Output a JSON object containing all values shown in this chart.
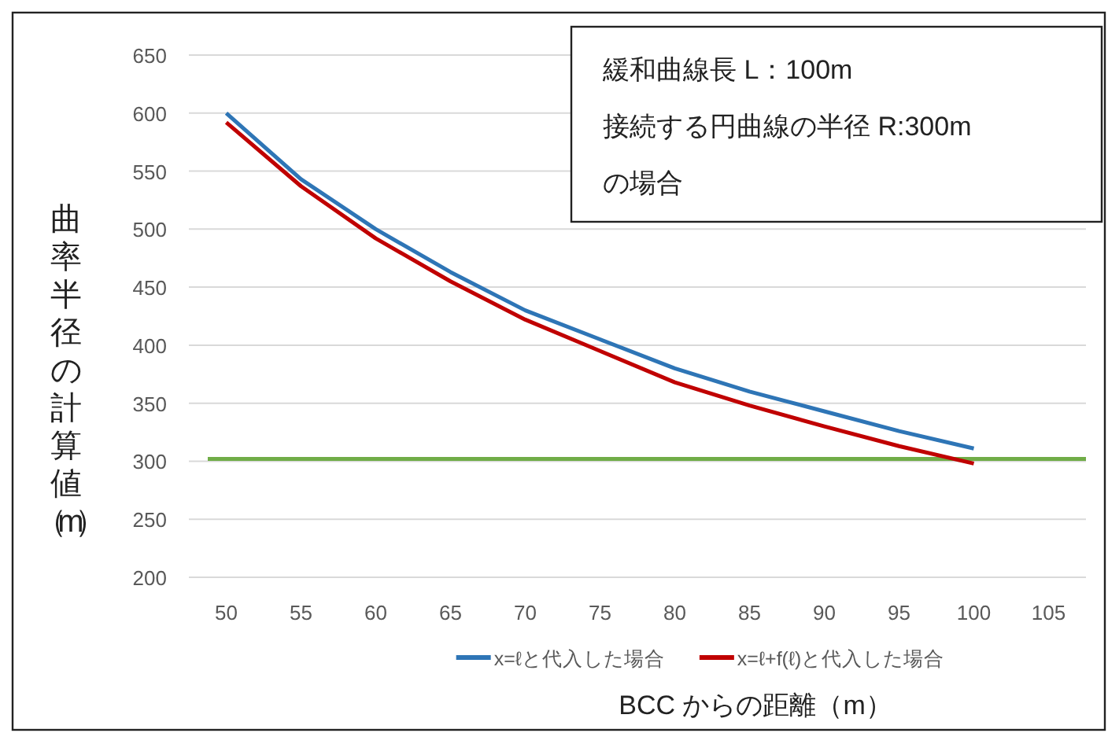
{
  "chart_data": {
    "type": "line",
    "xlabel": "BCC からの距離（m）",
    "ylabel": "曲率半径の計算値（m）",
    "annotations": [
      "緩和曲線長 L：100m",
      "接続する円曲線の半径 R:300mの場合"
    ],
    "categories": [
      "50",
      "55",
      "60",
      "65",
      "70",
      "75",
      "80",
      "85",
      "90",
      "95",
      "100",
      "105"
    ],
    "series": [
      {
        "name": "x=ℓと代入した場合",
        "color": "#2e75b6",
        "values": [
          600,
          543,
          500,
          463,
          430,
          405,
          380,
          360,
          343,
          326,
          311,
          null
        ]
      },
      {
        "name": "x=ℓ+f(ℓ)と代入した場合",
        "color": "#c00000",
        "values": [
          592,
          537,
          492,
          455,
          422,
          395,
          368,
          348,
          330,
          313,
          298,
          null
        ]
      }
    ],
    "ref_lines": [
      {
        "axis": "y",
        "value": 302,
        "color": "#70ad47"
      }
    ],
    "ylim": [
      200,
      650
    ],
    "yticks": [
      200,
      250,
      300,
      350,
      400,
      450,
      500,
      550,
      600,
      650
    ],
    "grid": "y",
    "legend": "bottom",
    "marker": "none",
    "line_style": "solid"
  }
}
